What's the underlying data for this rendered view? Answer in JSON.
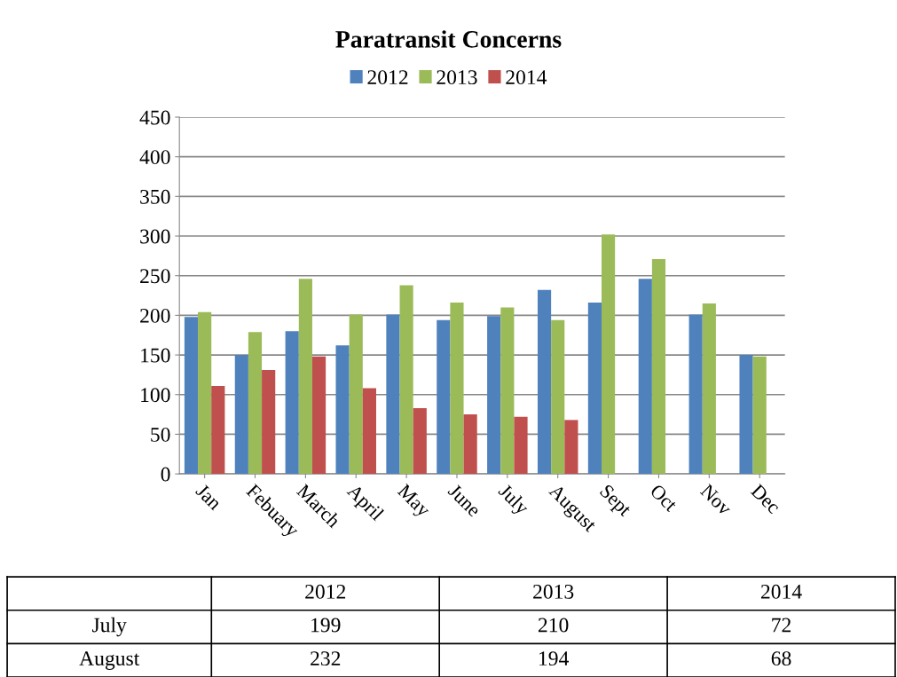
{
  "chart_data": {
    "type": "bar",
    "title": "Paratransit Concerns",
    "categories": [
      "Jan",
      "Febuary",
      "March",
      "April",
      "May",
      "June",
      "July",
      "August",
      "Sept",
      "Oct",
      "Nov",
      "Dec"
    ],
    "series": [
      {
        "name": "2012",
        "color": "#4f81bd",
        "values": [
          198,
          150,
          180,
          162,
          201,
          194,
          199,
          232,
          216,
          246,
          201,
          150
        ]
      },
      {
        "name": "2013",
        "color": "#9bbb59",
        "values": [
          204,
          179,
          246,
          201,
          238,
          216,
          210,
          194,
          302,
          271,
          215,
          148
        ]
      },
      {
        "name": "2014",
        "color": "#c0504d",
        "values": [
          111,
          131,
          148,
          108,
          83,
          75,
          72,
          68,
          null,
          null,
          null,
          null
        ]
      }
    ],
    "annotations": [
      "July",
      "199",
      "210",
      "72",
      "August",
      "232",
      "194",
      "68"
    ],
    "ylim": [
      0,
      450
    ],
    "yticks": [
      0,
      50,
      100,
      150,
      200,
      250,
      300,
      350,
      400,
      450
    ],
    "grid": "y",
    "legend": "top"
  }
}
